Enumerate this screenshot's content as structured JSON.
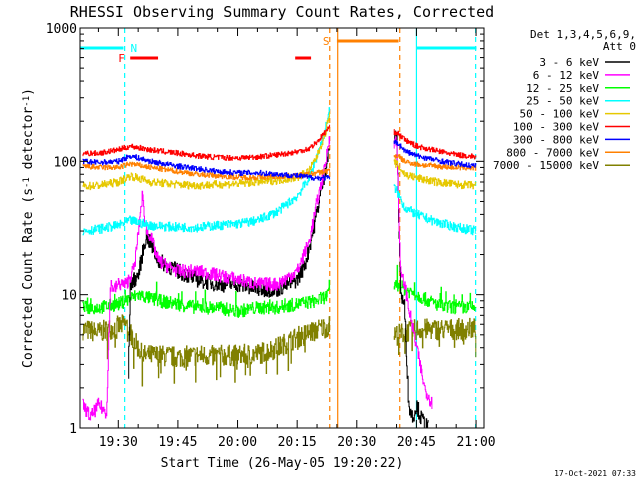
{
  "chart_data": {
    "type": "line",
    "title": "RHESSI Observing Summary Count Rates, Corrected",
    "xlabel": "Start Time (26-May-05 19:20:22)",
    "ylabel": "Corrected Count Rate (s⁻¹ detector⁻¹)",
    "ylabel_parts": [
      "Corrected Count Rate (s",
      "-1",
      " detector",
      "-1",
      ")"
    ],
    "x_unit": "minutes of day (UT)",
    "xlim": [
      1160.37,
      1262.0
    ],
    "xticks": [
      1170,
      1185,
      1200,
      1215,
      1230,
      1245,
      1260
    ],
    "xticklabels": [
      "19:30",
      "19:45",
      "20:00",
      "20:15",
      "20:30",
      "20:45",
      "21:00"
    ],
    "yscale": "log",
    "ylim": [
      1,
      1000
    ],
    "yticklabels": [
      "1",
      "10",
      "100",
      "1000"
    ],
    "legend": {
      "header": [
        "Det 1,3,4,5,6,9,",
        "Att 0"
      ],
      "placement": "right"
    },
    "timestamp": "17-Oct-2021 07:33",
    "data_gap": [
      1223.2,
      1239.3
    ],
    "series": [
      {
        "name": "3 - 6 keV",
        "color": "#000000",
        "x": [
          1172.5,
          1173.0,
          1175,
          1177,
          1180,
          1185,
          1190,
          1195,
          1200,
          1205,
          1210,
          1215,
          1217,
          1219,
          1221,
          1223,
          1240,
          1241,
          1242,
          1243,
          1244,
          1245,
          1246,
          1248
        ],
        "y": [
          2.5,
          12,
          14,
          28,
          18,
          15,
          13,
          12,
          12,
          11,
          11,
          13,
          17,
          30,
          60,
          120,
          150,
          10,
          8,
          1.5,
          1.2,
          1.5,
          1.2,
          1.0
        ]
      },
      {
        "name": "6 - 12 keV",
        "color": "#ff00ff",
        "x": [
          1161,
          1163,
          1165,
          1167,
          1168,
          1169,
          1170,
          1172,
          1174,
          1176,
          1177,
          1178,
          1180,
          1183,
          1185,
          1190,
          1195,
          1200,
          1205,
          1210,
          1215,
          1218,
          1220,
          1222,
          1223,
          1240,
          1241,
          1242,
          1243,
          1245,
          1247,
          1249
        ],
        "y": [
          1.5,
          1.2,
          1.5,
          1.3,
          12,
          11,
          12,
          12,
          16,
          55,
          30,
          28,
          18,
          16,
          15,
          15,
          14,
          13,
          12,
          12,
          15,
          25,
          50,
          90,
          150,
          140,
          14,
          12,
          8,
          4,
          2,
          1.5
        ]
      },
      {
        "name": "12 - 25 keV",
        "color": "#00ff00",
        "x": [
          1161,
          1165,
          1170,
          1175,
          1180,
          1185,
          1190,
          1195,
          1200,
          1205,
          1210,
          1215,
          1220,
          1223,
          1240,
          1242,
          1245,
          1248,
          1252,
          1256,
          1260
        ],
        "y": [
          8,
          8,
          8.5,
          10,
          9,
          8.5,
          8,
          8,
          7.5,
          8,
          8,
          8.5,
          9,
          10,
          12,
          11,
          10,
          9,
          8,
          8,
          8
        ]
      },
      {
        "name": "25 - 50 keV",
        "color": "#00ffff",
        "x": [
          1161,
          1165,
          1170,
          1173,
          1178,
          1185,
          1190,
          1195,
          1200,
          1205,
          1210,
          1215,
          1218,
          1220,
          1222,
          1223,
          1240,
          1242,
          1245,
          1250,
          1255,
          1260
        ],
        "y": [
          30,
          31,
          33,
          36,
          33,
          32,
          32,
          33,
          34,
          36,
          42,
          55,
          75,
          110,
          170,
          240,
          60,
          45,
          40,
          35,
          32,
          30
        ]
      },
      {
        "name": "50 - 100 keV",
        "color": "#e6c800",
        "x": [
          1161,
          1165,
          1170,
          1173,
          1178,
          1185,
          1190,
          1195,
          1200,
          1205,
          1210,
          1215,
          1218,
          1220,
          1222,
          1223,
          1240,
          1242,
          1245,
          1250,
          1255,
          1260
        ],
        "y": [
          65,
          66,
          70,
          78,
          70,
          67,
          66,
          67,
          68,
          70,
          72,
          76,
          85,
          110,
          160,
          220,
          95,
          80,
          75,
          70,
          67,
          66
        ]
      },
      {
        "name": "100 - 300 keV",
        "color": "#ff0000",
        "x": [
          1161,
          1165,
          1170,
          1173,
          1178,
          1185,
          1190,
          1195,
          1200,
          1205,
          1210,
          1215,
          1218,
          1220,
          1223,
          1240,
          1242,
          1245,
          1250,
          1255,
          1260
        ],
        "y": [
          115,
          115,
          122,
          130,
          122,
          115,
          110,
          107,
          106,
          108,
          112,
          118,
          125,
          140,
          180,
          165,
          145,
          130,
          120,
          112,
          108
        ]
      },
      {
        "name": "300 - 800 keV",
        "color": "#0000ff",
        "x": [
          1161,
          1165,
          1170,
          1173,
          1178,
          1185,
          1190,
          1195,
          1200,
          1205,
          1210,
          1215,
          1218,
          1220,
          1223,
          1240,
          1242,
          1245,
          1250,
          1255,
          1260
        ],
        "y": [
          100,
          98,
          100,
          110,
          100,
          92,
          88,
          84,
          82,
          82,
          80,
          78,
          76,
          75,
          75,
          140,
          120,
          110,
          102,
          96,
          92
        ]
      },
      {
        "name": "800 - 7000 keV",
        "color": "#ff8000",
        "x": [
          1161,
          1165,
          1170,
          1173,
          1178,
          1185,
          1190,
          1195,
          1200,
          1205,
          1210,
          1215,
          1218,
          1220,
          1223,
          1240,
          1242,
          1245,
          1250,
          1255,
          1260
        ],
        "y": [
          92,
          90,
          90,
          96,
          90,
          84,
          80,
          78,
          76,
          76,
          77,
          78,
          80,
          82,
          85,
          110,
          100,
          95,
          92,
          90,
          89
        ]
      },
      {
        "name": "7000 - 15000 keV",
        "color": "#808000",
        "x": [
          1161,
          1165,
          1170,
          1172,
          1174,
          1176,
          1180,
          1185,
          1190,
          1195,
          1200,
          1205,
          1210,
          1215,
          1218,
          1220,
          1222,
          1223,
          1240,
          1242,
          1245,
          1250,
          1255,
          1260
        ],
        "y": [
          5.5,
          5.2,
          5.8,
          6,
          4.5,
          3.5,
          3.5,
          3.4,
          3.5,
          3.5,
          3.5,
          3.6,
          4,
          4.8,
          5.2,
          5.5,
          5.7,
          5.8,
          5,
          5.2,
          5.5,
          5.5,
          5.5,
          5.6
        ]
      }
    ],
    "flags": [
      {
        "label": "N",
        "color": "#00ffff",
        "spans": [
          [
            1160.4,
            1171.3
          ],
          [
            1245.1,
            1260.1
          ]
        ]
      },
      {
        "label": "F",
        "color": "#ff0000",
        "spans": [
          [
            1173.0,
            1180.0
          ],
          [
            1214.5,
            1218.5
          ]
        ]
      },
      {
        "label": "S",
        "color": "#ff8000",
        "spans": [
          [
            1225.0,
            1240.5
          ]
        ]
      }
    ],
    "vlines": [
      {
        "x": 1171.6,
        "color": "#00ffff",
        "style": "dashed"
      },
      {
        "x": 1223.2,
        "color": "#ff8000",
        "style": "dashed"
      },
      {
        "x": 1225.2,
        "color": "#ff8000",
        "style": "solid"
      },
      {
        "x": 1240.8,
        "color": "#ff8000",
        "style": "dashed"
      },
      {
        "x": 1245.0,
        "color": "#00ffff",
        "style": "solid"
      },
      {
        "x": 1259.9,
        "color": "#00ffff",
        "style": "dashed"
      }
    ],
    "vline_band_colored": [
      1161.0,
      1244.5
    ]
  }
}
